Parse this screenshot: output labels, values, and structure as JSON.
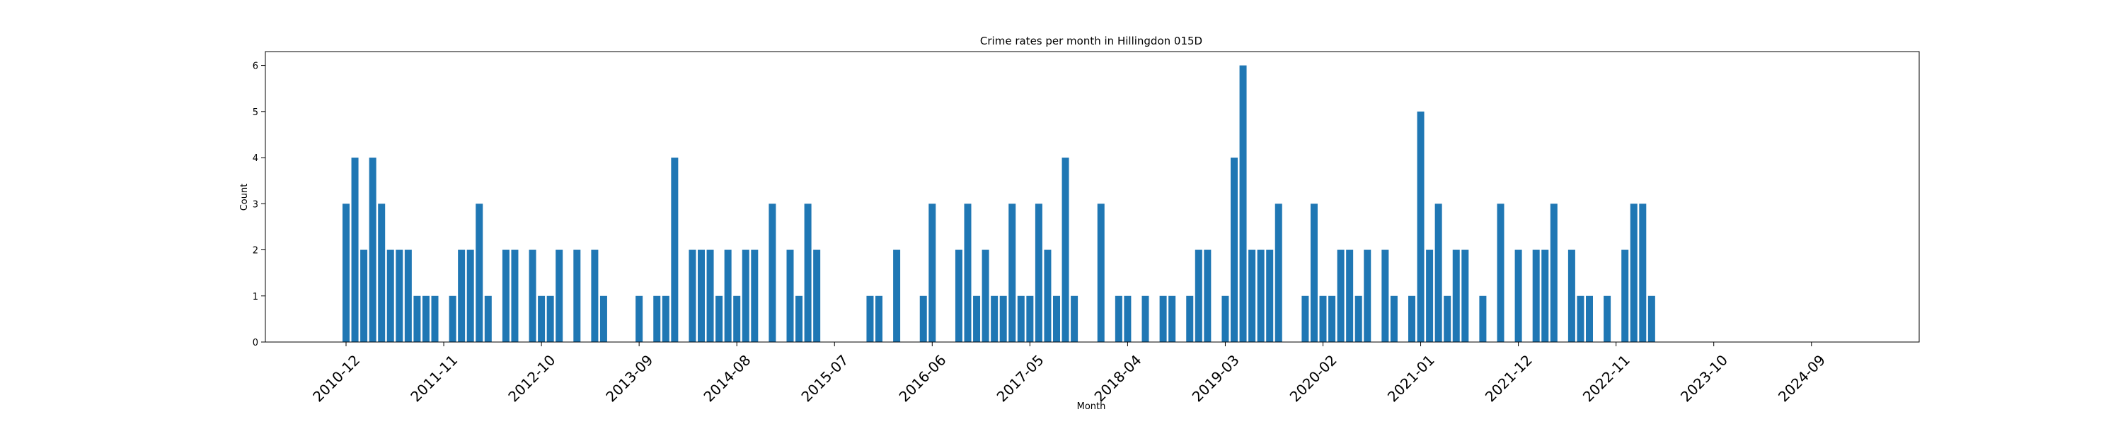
{
  "chart_data": {
    "type": "bar",
    "title": "Crime rates per month in Hillingdon 015D",
    "xlabel": "Month",
    "ylabel": "Count",
    "ylim": [
      0,
      6.3
    ],
    "yticks": [
      0,
      1,
      2,
      3,
      4,
      5,
      6
    ],
    "grid": false,
    "legend": "none",
    "bar_color": "#1f77b4",
    "xtick_labels": [
      "2010-12",
      "2011-11",
      "2012-10",
      "2013-09",
      "2014-08",
      "2015-07",
      "2016-06",
      "2017-05",
      "2018-04",
      "2019-03",
      "2020-02",
      "2021-01",
      "2021-12",
      "2022-11",
      "2023-10",
      "2024-09"
    ],
    "first_month": "2010-12",
    "values": [
      3,
      4,
      2,
      4,
      3,
      2,
      2,
      2,
      1,
      1,
      1,
      0,
      1,
      2,
      2,
      3,
      1,
      0,
      2,
      2,
      0,
      2,
      1,
      1,
      2,
      0,
      2,
      0,
      2,
      1,
      0,
      0,
      0,
      1,
      0,
      1,
      1,
      4,
      0,
      2,
      2,
      2,
      1,
      2,
      1,
      2,
      2,
      0,
      3,
      0,
      2,
      1,
      3,
      2,
      0,
      0,
      0,
      0,
      0,
      1,
      1,
      0,
      2,
      0,
      0,
      1,
      3,
      0,
      0,
      2,
      3,
      1,
      2,
      1,
      1,
      3,
      1,
      1,
      3,
      2,
      1,
      4,
      1,
      0,
      0,
      3,
      0,
      1,
      1,
      0,
      1,
      0,
      1,
      1,
      0,
      1,
      2,
      2,
      0,
      1,
      4,
      6,
      2,
      2,
      2,
      3,
      0,
      0,
      1,
      3,
      1,
      1,
      2,
      2,
      1,
      2,
      0,
      2,
      1,
      0,
      1,
      5,
      2,
      3,
      1,
      2,
      2,
      0,
      1,
      0,
      3,
      0,
      2,
      0,
      2,
      2,
      3,
      0,
      2,
      1,
      1,
      0,
      1,
      0,
      2,
      3,
      3,
      1
    ]
  }
}
